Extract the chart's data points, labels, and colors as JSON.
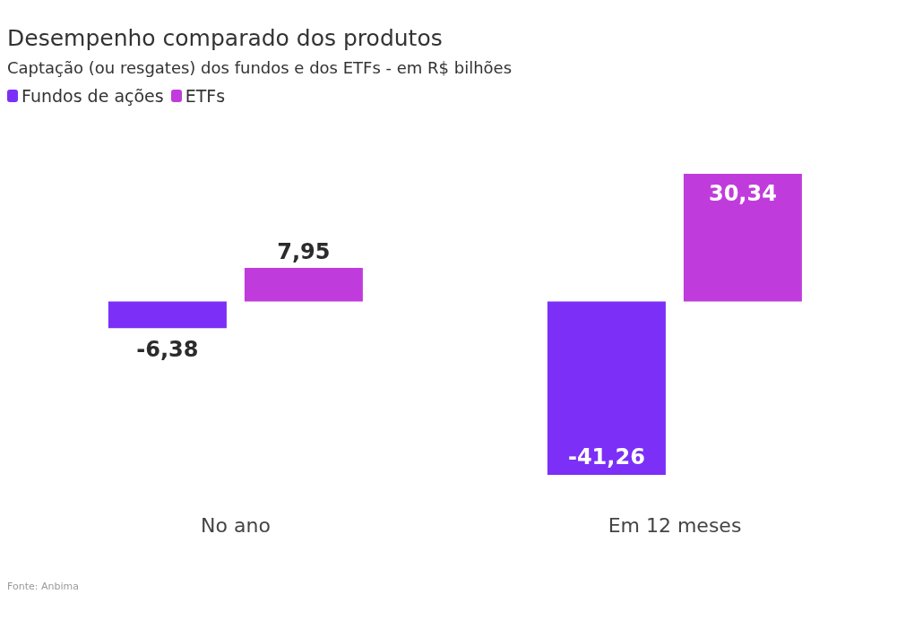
{
  "chart_data": {
    "type": "bar",
    "title": "Desempenho comparado dos produtos",
    "subtitle": "Captação (ou resgates) dos fundos e dos ETFs - em R$ bilhões",
    "categories": [
      "No ano",
      "Em 12 meses"
    ],
    "series": [
      {
        "name": "Fundos de ações",
        "color": "#7b2ff7",
        "values": [
          -6.38,
          -41.26
        ],
        "value_labels": [
          "-6,38",
          "-41,26"
        ]
      },
      {
        "name": "ETFs",
        "color": "#c03bdc",
        "values": [
          7.95,
          30.34
        ],
        "value_labels": [
          "7,95",
          "30,34"
        ]
      }
    ],
    "legend": "top left",
    "grid": false,
    "annotations": [
      "Fonte: Anbima"
    ]
  }
}
